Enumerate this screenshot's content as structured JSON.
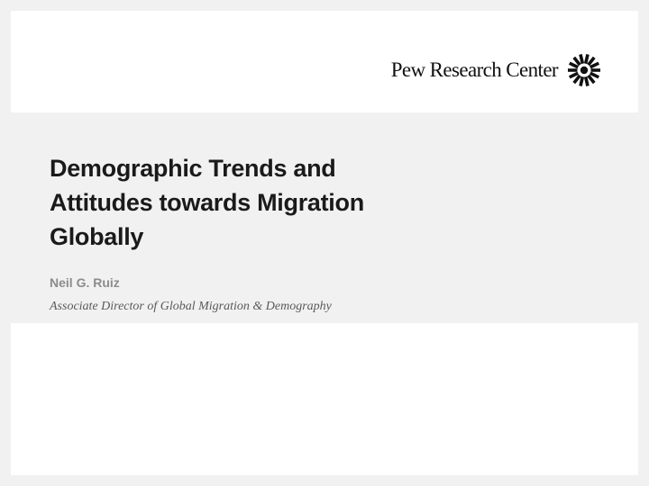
{
  "brand": {
    "name": "Pew Research Center",
    "mark_icon": "pew-sunburst-icon"
  },
  "slide": {
    "title_lines": [
      "Demographic Trends and",
      "Attitudes towards Migration",
      "Globally"
    ],
    "author": "Neil G. Ruiz",
    "author_role": "Associate Director of Global Migration & Demography"
  },
  "colors": {
    "background": "#f1f1f1",
    "panel": "#ffffff",
    "title": "#1a1a1a",
    "author": "#8c8c8c",
    "role": "#5a5a5a"
  }
}
